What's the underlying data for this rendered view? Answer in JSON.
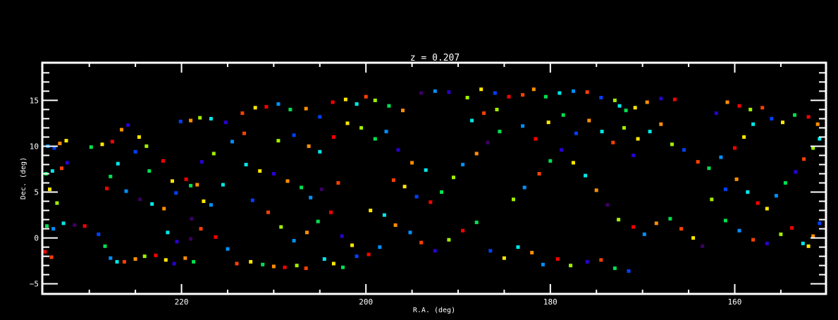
{
  "chart_data": {
    "type": "scatter",
    "title": "z = 0.207",
    "xlabel": "R.A. (deg)",
    "ylabel": "Dec. (deg)",
    "xlim": [
      235.1,
      150.1
    ],
    "ylim": [
      -6.1,
      19.1
    ],
    "x_reversed": true,
    "grid": false,
    "xticks": [
      220,
      200,
      180,
      160
    ],
    "xtick_labels": [
      "220",
      "200",
      "180",
      "160"
    ],
    "yticks": [
      -5,
      0,
      5,
      10,
      15
    ],
    "ytick_labels": [
      "−5",
      "0",
      "5",
      "10",
      "15"
    ],
    "background": "#000000",
    "axis_color": "#ffffff",
    "palette": [
      "#3c0064",
      "#2a00d0",
      "#0040ff",
      "#0090ff",
      "#00e8e8",
      "#00e050",
      "#a0f000",
      "#ffe800",
      "#ff9000",
      "#ff4000",
      "#ff0000"
    ],
    "points": [
      [
        234.5,
        10.0,
        3
      ],
      [
        233.8,
        9.8,
        2
      ],
      [
        233.2,
        10.3,
        8
      ],
      [
        232.5,
        10.6,
        7
      ],
      [
        234.7,
        7.0,
        5
      ],
      [
        234.0,
        7.3,
        4
      ],
      [
        233.0,
        7.6,
        9
      ],
      [
        232.4,
        8.2,
        1
      ],
      [
        234.3,
        5.3,
        7
      ],
      [
        233.5,
        3.8,
        6
      ],
      [
        234.6,
        1.3,
        5
      ],
      [
        233.9,
        1.0,
        3
      ],
      [
        234.8,
        -1.5,
        10
      ],
      [
        234.1,
        -2.1,
        9
      ],
      [
        232.8,
        1.6,
        4
      ],
      [
        231.6,
        1.4,
        0
      ],
      [
        230.5,
        1.3,
        10
      ],
      [
        229.8,
        9.9,
        5
      ],
      [
        228.6,
        10.2,
        7
      ],
      [
        227.5,
        10.5,
        10
      ],
      [
        226.5,
        11.8,
        8
      ],
      [
        225.8,
        12.3,
        1
      ],
      [
        224.6,
        11.0,
        7
      ],
      [
        223.8,
        10.0,
        6
      ],
      [
        225.0,
        9.4,
        2
      ],
      [
        226.9,
        8.1,
        4
      ],
      [
        227.7,
        6.7,
        5
      ],
      [
        228.1,
        5.4,
        10
      ],
      [
        226.0,
        5.1,
        3
      ],
      [
        224.5,
        4.2,
        0
      ],
      [
        223.2,
        3.7,
        4
      ],
      [
        221.9,
        3.2,
        8
      ],
      [
        220.6,
        4.9,
        2
      ],
      [
        219.5,
        6.4,
        10
      ],
      [
        219.0,
        5.7,
        5
      ],
      [
        218.3,
        5.8,
        8
      ],
      [
        217.6,
        4.0,
        7
      ],
      [
        216.8,
        3.6,
        3
      ],
      [
        218.9,
        2.1,
        0
      ],
      [
        217.9,
        1.0,
        9
      ],
      [
        229.0,
        0.4,
        2
      ],
      [
        228.3,
        -0.9,
        5
      ],
      [
        227.7,
        -2.2,
        3
      ],
      [
        227.0,
        -2.6,
        4
      ],
      [
        226.2,
        -2.6,
        9
      ],
      [
        225.0,
        -2.3,
        8
      ],
      [
        224.0,
        -2.0,
        6
      ],
      [
        222.8,
        -1.9,
        10
      ],
      [
        221.7,
        -2.4,
        7
      ],
      [
        220.8,
        -2.8,
        1
      ],
      [
        219.6,
        -2.2,
        8
      ],
      [
        218.7,
        -2.6,
        5
      ],
      [
        221.5,
        0.6,
        4
      ],
      [
        220.5,
        -0.4,
        1
      ],
      [
        219.0,
        -0.1,
        0
      ],
      [
        216.3,
        0.1,
        10
      ],
      [
        215.0,
        -1.2,
        3
      ],
      [
        214.0,
        -2.8,
        9
      ],
      [
        212.5,
        -2.6,
        7
      ],
      [
        211.2,
        -2.9,
        5
      ],
      [
        210.0,
        -3.1,
        8
      ],
      [
        208.8,
        -3.2,
        10
      ],
      [
        207.5,
        -3.0,
        6
      ],
      [
        206.5,
        -3.3,
        9
      ],
      [
        204.5,
        -2.3,
        4
      ],
      [
        203.5,
        -2.8,
        7
      ],
      [
        202.5,
        -3.2,
        5
      ],
      [
        201.0,
        -2.0,
        2
      ],
      [
        199.7,
        -1.8,
        10
      ],
      [
        198.5,
        -1.0,
        3
      ],
      [
        220.1,
        12.7,
        2
      ],
      [
        219.0,
        12.8,
        8
      ],
      [
        218.0,
        13.1,
        6
      ],
      [
        216.8,
        13.0,
        4
      ],
      [
        215.2,
        12.6,
        1
      ],
      [
        213.4,
        13.6,
        9
      ],
      [
        212.0,
        14.2,
        7
      ],
      [
        210.8,
        14.3,
        10
      ],
      [
        209.5,
        14.6,
        3
      ],
      [
        208.2,
        14.0,
        5
      ],
      [
        206.5,
        14.1,
        8
      ],
      [
        205.0,
        13.2,
        2
      ],
      [
        203.6,
        14.8,
        10
      ],
      [
        202.2,
        15.1,
        7
      ],
      [
        201.0,
        14.6,
        4
      ],
      [
        200.0,
        15.4,
        9
      ],
      [
        199.0,
        15.0,
        6
      ],
      [
        197.5,
        14.4,
        5
      ],
      [
        196.0,
        13.9,
        8
      ],
      [
        194.0,
        15.8,
        0
      ],
      [
        192.5,
        16.0,
        3
      ],
      [
        191.0,
        15.9,
        1
      ],
      [
        189.0,
        15.3,
        6
      ],
      [
        187.5,
        16.2,
        7
      ],
      [
        186.0,
        15.8,
        2
      ],
      [
        184.5,
        15.4,
        10
      ],
      [
        183.0,
        15.6,
        9
      ],
      [
        181.8,
        16.2,
        8
      ],
      [
        180.5,
        15.4,
        5
      ],
      [
        179.0,
        15.8,
        4
      ],
      [
        177.5,
        16.0,
        3
      ],
      [
        176.0,
        15.9,
        9
      ],
      [
        174.5,
        15.3,
        2
      ],
      [
        173.0,
        15.0,
        6
      ],
      [
        172.5,
        14.4,
        4
      ],
      [
        171.8,
        13.9,
        5
      ],
      [
        170.8,
        14.2,
        7
      ],
      [
        169.5,
        14.8,
        8
      ],
      [
        168.0,
        15.2,
        1
      ],
      [
        166.5,
        15.1,
        10
      ],
      [
        213.0,
        8.0,
        4
      ],
      [
        211.5,
        7.3,
        7
      ],
      [
        210.0,
        7.0,
        1
      ],
      [
        208.5,
        6.2,
        8
      ],
      [
        207.0,
        5.5,
        5
      ],
      [
        206.0,
        4.4,
        3
      ],
      [
        204.8,
        5.3,
        0
      ],
      [
        203.0,
        6.0,
        9
      ],
      [
        209.5,
        10.6,
        6
      ],
      [
        207.8,
        11.2,
        2
      ],
      [
        206.2,
        10.0,
        8
      ],
      [
        205.0,
        9.4,
        4
      ],
      [
        203.5,
        11.0,
        10
      ],
      [
        202.0,
        12.5,
        7
      ],
      [
        200.5,
        12.0,
        6
      ],
      [
        199.0,
        10.8,
        5
      ],
      [
        197.8,
        11.6,
        3
      ],
      [
        196.5,
        9.6,
        1
      ],
      [
        195.0,
        8.2,
        8
      ],
      [
        193.5,
        7.4,
        4
      ],
      [
        197.0,
        6.3,
        9
      ],
      [
        195.8,
        5.6,
        7
      ],
      [
        194.5,
        4.5,
        2
      ],
      [
        193.0,
        3.9,
        10
      ],
      [
        191.8,
        5.0,
        5
      ],
      [
        190.5,
        6.6,
        6
      ],
      [
        189.5,
        8.0,
        3
      ],
      [
        188.0,
        9.2,
        8
      ],
      [
        186.8,
        10.4,
        0
      ],
      [
        185.5,
        11.6,
        5
      ],
      [
        199.5,
        3.0,
        7
      ],
      [
        198.0,
        2.5,
        4
      ],
      [
        196.8,
        1.4,
        8
      ],
      [
        195.2,
        0.6,
        3
      ],
      [
        194.0,
        -0.5,
        9
      ],
      [
        192.5,
        -1.4,
        1
      ],
      [
        191.0,
        -0.2,
        6
      ],
      [
        189.5,
        0.8,
        10
      ],
      [
        188.0,
        1.7,
        5
      ],
      [
        186.5,
        -1.4,
        2
      ],
      [
        185.0,
        -2.2,
        7
      ],
      [
        183.5,
        -1.0,
        4
      ],
      [
        182.0,
        -1.6,
        8
      ],
      [
        180.8,
        -2.9,
        3
      ],
      [
        179.2,
        -2.3,
        10
      ],
      [
        177.8,
        -3.0,
        6
      ],
      [
        176.0,
        -2.6,
        1
      ],
      [
        174.5,
        -2.4,
        9
      ],
      [
        173.0,
        -3.3,
        5
      ],
      [
        171.5,
        -3.6,
        2
      ],
      [
        184.0,
        4.2,
        6
      ],
      [
        182.8,
        5.5,
        3
      ],
      [
        181.2,
        7.0,
        9
      ],
      [
        180.0,
        8.4,
        5
      ],
      [
        178.8,
        9.6,
        1
      ],
      [
        177.5,
        8.2,
        7
      ],
      [
        176.2,
        6.8,
        4
      ],
      [
        175.0,
        5.2,
        8
      ],
      [
        173.8,
        3.6,
        0
      ],
      [
        172.6,
        2.0,
        6
      ],
      [
        171.0,
        1.2,
        10
      ],
      [
        169.8,
        0.4,
        3
      ],
      [
        168.5,
        1.6,
        8
      ],
      [
        167.0,
        2.1,
        5
      ],
      [
        165.8,
        1.0,
        9
      ],
      [
        164.5,
        0.0,
        7
      ],
      [
        163.5,
        -0.9,
        0
      ],
      [
        170.5,
        10.8,
        7
      ],
      [
        169.2,
        11.6,
        4
      ],
      [
        168.0,
        12.4,
        8
      ],
      [
        166.8,
        10.2,
        6
      ],
      [
        165.5,
        9.6,
        2
      ],
      [
        164.0,
        8.3,
        9
      ],
      [
        162.8,
        7.6,
        5
      ],
      [
        161.5,
        8.8,
        3
      ],
      [
        160.0,
        9.8,
        10
      ],
      [
        159.0,
        11.0,
        7
      ],
      [
        158.0,
        12.4,
        4
      ],
      [
        162.0,
        13.6,
        1
      ],
      [
        160.8,
        14.8,
        8
      ],
      [
        159.5,
        14.4,
        10
      ],
      [
        158.3,
        14.0,
        6
      ],
      [
        157.0,
        14.2,
        9
      ],
      [
        162.5,
        4.2,
        6
      ],
      [
        161.0,
        5.3,
        2
      ],
      [
        159.8,
        6.4,
        8
      ],
      [
        158.6,
        5.0,
        4
      ],
      [
        157.5,
        3.8,
        10
      ],
      [
        156.5,
        3.2,
        7
      ],
      [
        155.5,
        4.6,
        3
      ],
      [
        154.5,
        6.0,
        5
      ],
      [
        153.4,
        7.2,
        1
      ],
      [
        152.5,
        8.6,
        9
      ],
      [
        151.5,
        9.8,
        6
      ],
      [
        150.8,
        10.8,
        4
      ],
      [
        156.0,
        13.0,
        2
      ],
      [
        154.8,
        12.6,
        7
      ],
      [
        153.5,
        13.4,
        5
      ],
      [
        152.0,
        13.2,
        10
      ],
      [
        151.0,
        12.4,
        8
      ],
      [
        161.0,
        1.9,
        5
      ],
      [
        159.5,
        0.8,
        3
      ],
      [
        158.0,
        -0.2,
        9
      ],
      [
        156.5,
        -0.6,
        1
      ],
      [
        155.0,
        0.4,
        6
      ],
      [
        153.8,
        1.1,
        10
      ],
      [
        152.6,
        -0.6,
        4
      ],
      [
        151.5,
        0.2,
        8
      ],
      [
        150.8,
        1.6,
        2
      ],
      [
        152.0,
        -0.9,
        7
      ],
      [
        214.5,
        10.5,
        3
      ],
      [
        213.2,
        11.4,
        9
      ],
      [
        216.5,
        9.2,
        6
      ],
      [
        217.8,
        8.3,
        1
      ],
      [
        222.0,
        8.4,
        10
      ],
      [
        223.5,
        7.3,
        5
      ],
      [
        221.0,
        6.2,
        7
      ],
      [
        215.5,
        5.8,
        4
      ],
      [
        212.3,
        4.1,
        2
      ],
      [
        210.6,
        2.8,
        9
      ],
      [
        209.2,
        1.2,
        6
      ],
      [
        207.8,
        -0.3,
        3
      ],
      [
        206.4,
        0.6,
        8
      ],
      [
        205.2,
        1.8,
        5
      ],
      [
        203.8,
        2.8,
        10
      ],
      [
        202.6,
        0.2,
        1
      ],
      [
        201.5,
        -0.8,
        7
      ],
      [
        188.5,
        12.8,
        4
      ],
      [
        187.2,
        13.6,
        9
      ],
      [
        185.8,
        14.0,
        6
      ],
      [
        183.0,
        12.2,
        3
      ],
      [
        181.6,
        10.8,
        10
      ],
      [
        180.2,
        12.6,
        7
      ],
      [
        178.6,
        13.4,
        5
      ],
      [
        177.2,
        11.4,
        2
      ],
      [
        175.8,
        12.8,
        8
      ],
      [
        174.4,
        11.6,
        4
      ],
      [
        173.2,
        10.4,
        9
      ],
      [
        172.0,
        12.0,
        6
      ],
      [
        171.0,
        9.0,
        1
      ]
    ]
  }
}
